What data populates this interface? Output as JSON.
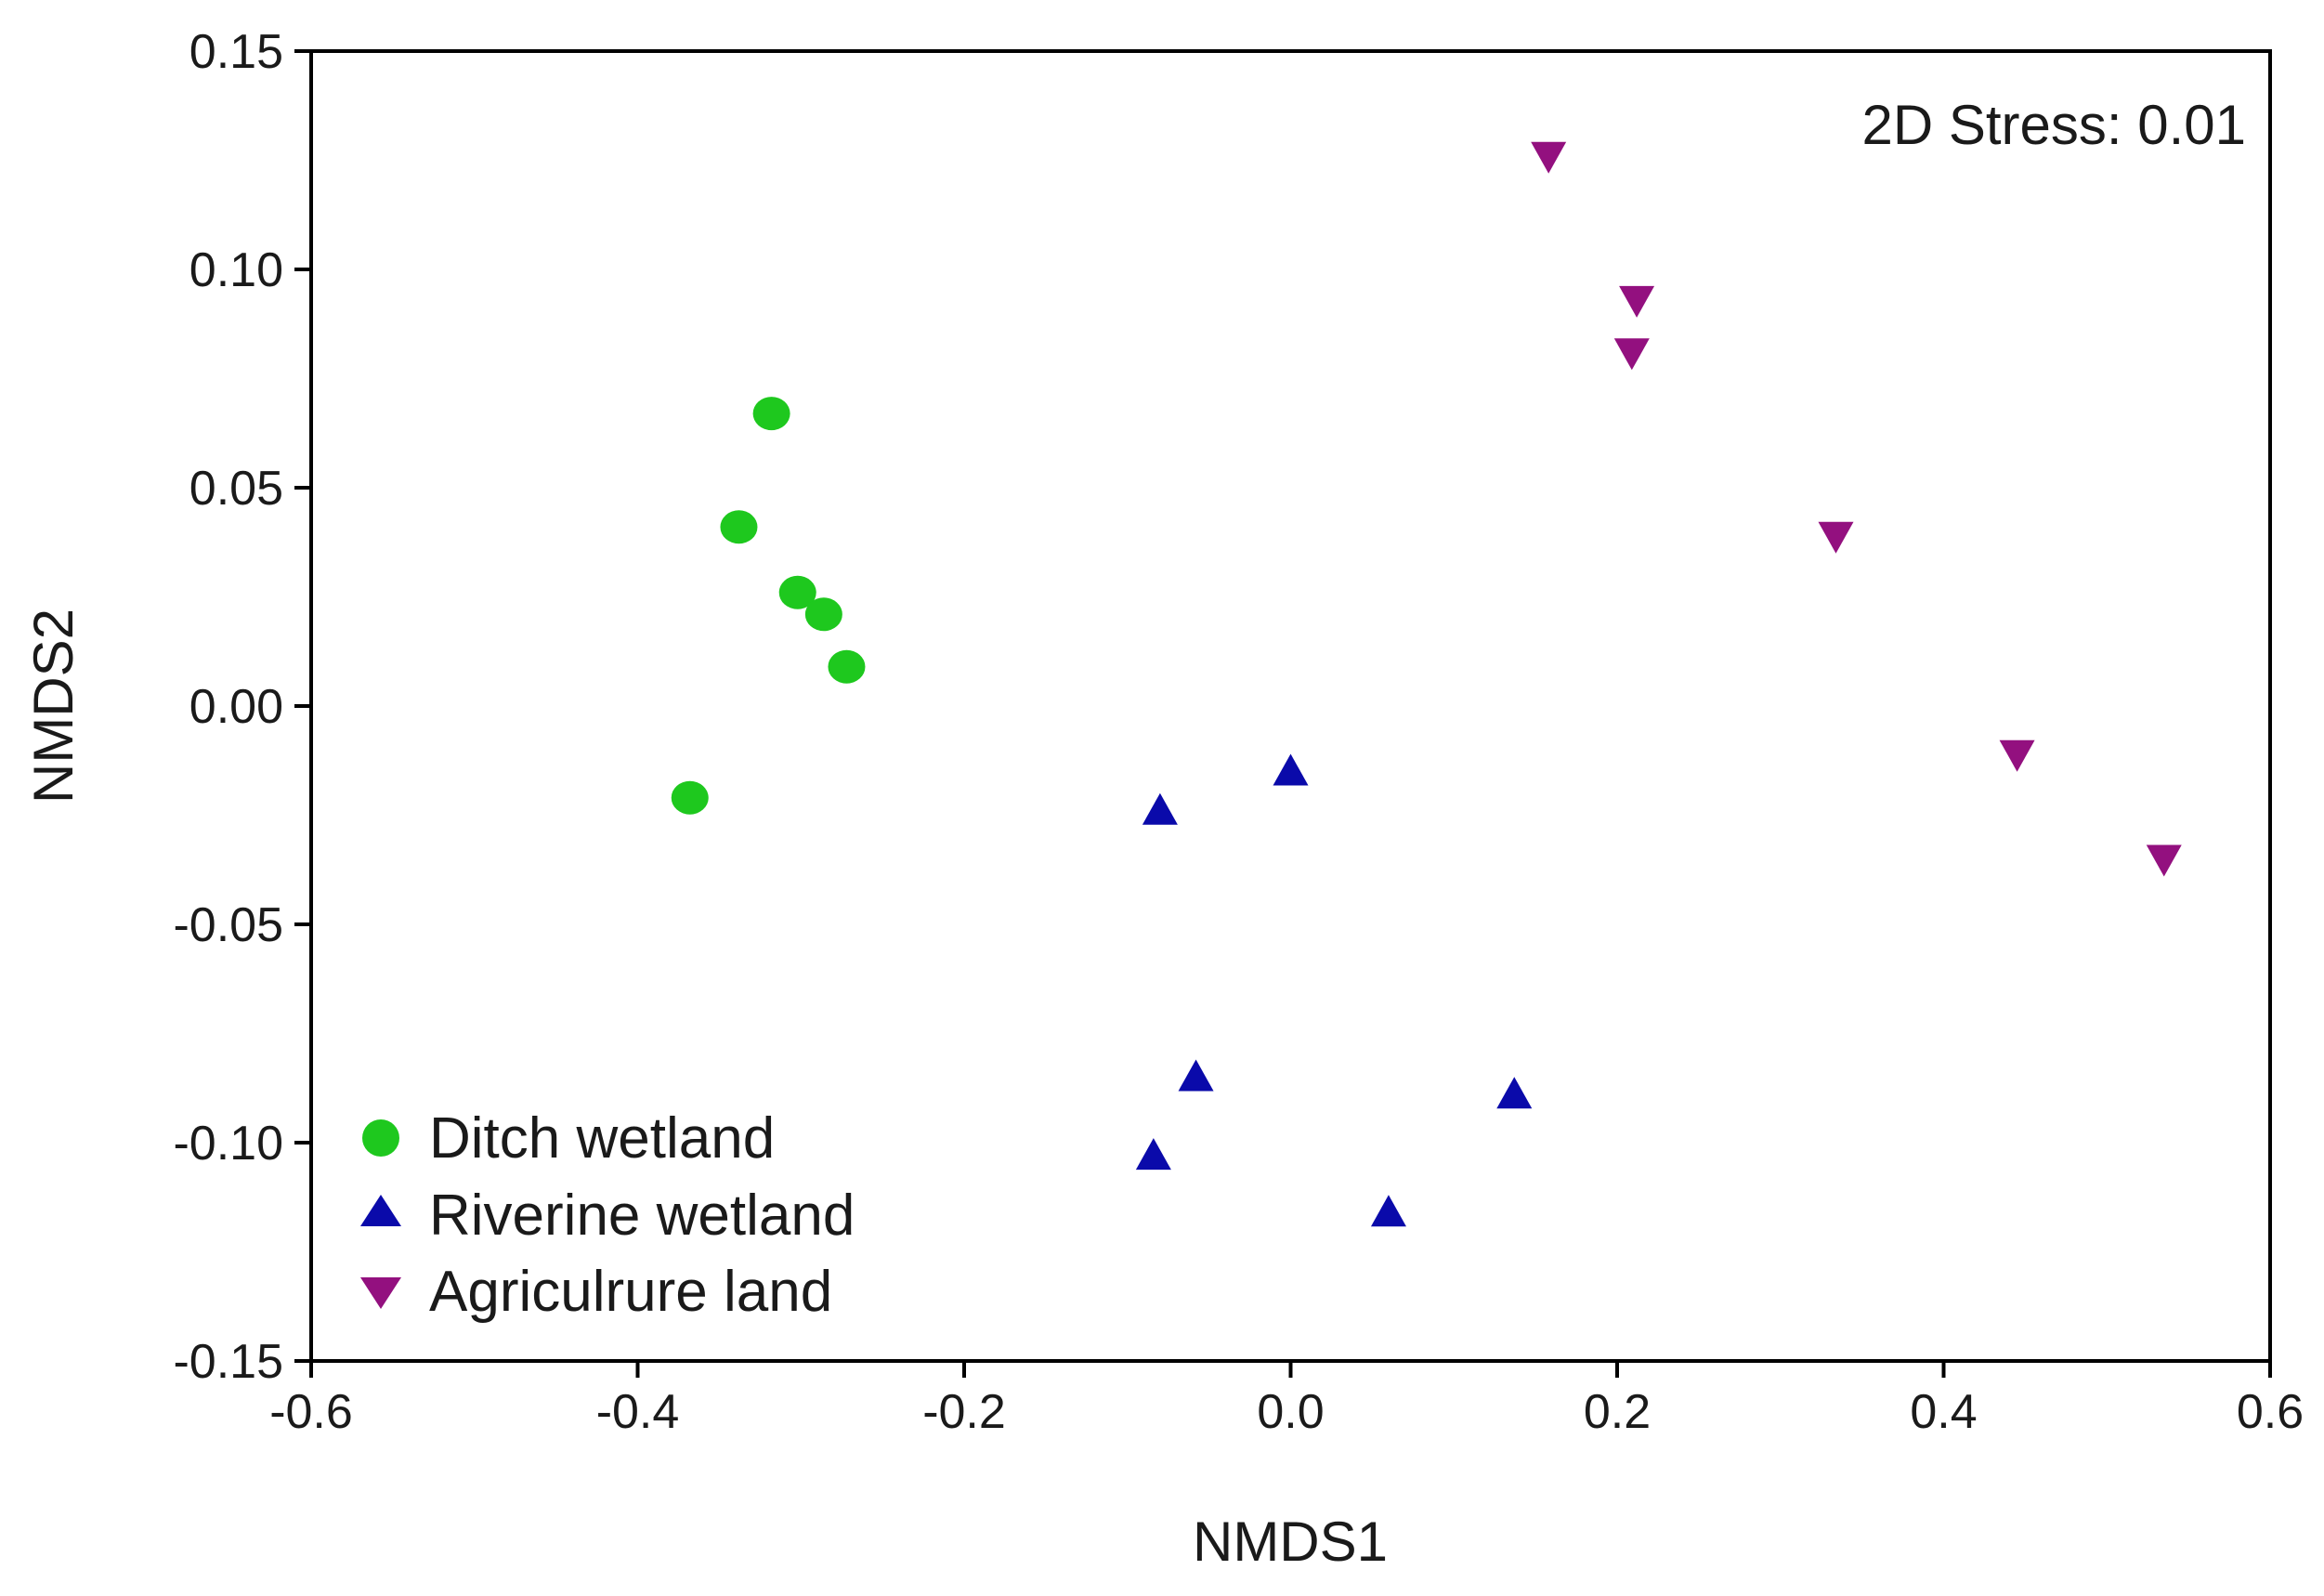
{
  "chart_data": {
    "type": "scatter",
    "title": "",
    "xlabel": "NMDS1",
    "ylabel": "NMDS2",
    "xlim": [
      -0.6,
      0.6
    ],
    "ylim": [
      -0.15,
      0.15
    ],
    "xticks": [
      "-0.6",
      "-0.4",
      "-0.2",
      "0.0",
      "0.2",
      "0.4",
      "0.6"
    ],
    "yticks": [
      "-0.15",
      "-0.10",
      "-0.05",
      "0.00",
      "0.05",
      "0.10",
      "0.15"
    ],
    "grid": false,
    "annotation": "2D Stress: 0.01",
    "legend_position": "bottom-left",
    "series": [
      {
        "name": "Ditch wetland",
        "marker": "circle",
        "color": "#1ec81e",
        "points": [
          [
            -0.318,
            0.067
          ],
          [
            -0.338,
            0.041
          ],
          [
            -0.302,
            0.026
          ],
          [
            -0.286,
            0.021
          ],
          [
            -0.272,
            0.009
          ],
          [
            -0.368,
            -0.021
          ]
        ]
      },
      {
        "name": "Riverine wetland",
        "marker": "triangle-up",
        "color": "#0a0aaa",
        "points": [
          [
            0.0,
            -0.015
          ],
          [
            -0.08,
            -0.024
          ],
          [
            -0.058,
            -0.085
          ],
          [
            -0.084,
            -0.103
          ],
          [
            0.137,
            -0.089
          ],
          [
            0.06,
            -0.116
          ]
        ]
      },
      {
        "name": "Agriculrure land",
        "marker": "triangle-down",
        "color": "#93107f",
        "points": [
          [
            0.158,
            0.126
          ],
          [
            0.212,
            0.093
          ],
          [
            0.209,
            0.081
          ],
          [
            0.334,
            0.039
          ],
          [
            0.445,
            -0.011
          ],
          [
            0.535,
            -0.035
          ]
        ]
      }
    ]
  }
}
